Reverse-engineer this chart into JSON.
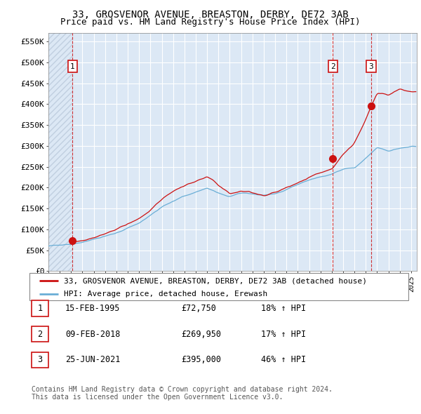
{
  "title": "33, GROSVENOR AVENUE, BREASTON, DERBY, DE72 3AB",
  "subtitle": "Price paid vs. HM Land Registry's House Price Index (HPI)",
  "ylabel_ticks": [
    "£0",
    "£50K",
    "£100K",
    "£150K",
    "£200K",
    "£250K",
    "£300K",
    "£350K",
    "£400K",
    "£450K",
    "£500K",
    "£550K"
  ],
  "ytick_values": [
    0,
    50000,
    100000,
    150000,
    200000,
    250000,
    300000,
    350000,
    400000,
    450000,
    500000,
    550000
  ],
  "ylim": [
    0,
    570000
  ],
  "xlim_start": 1993.0,
  "xlim_end": 2025.5,
  "sale_dates": [
    1995.12,
    2018.09,
    2021.48
  ],
  "sale_prices": [
    72750,
    269950,
    395000
  ],
  "sale_labels": [
    "1",
    "2",
    "3"
  ],
  "hpi_color": "#6aaed6",
  "price_color": "#cc1111",
  "dashed_color": "#cc1111",
  "background_color": "#dce8f5",
  "hatch_color": "#c0cfe0",
  "grid_color": "#ffffff",
  "legend_entries": [
    "33, GROSVENOR AVENUE, BREASTON, DERBY, DE72 3AB (detached house)",
    "HPI: Average price, detached house, Erewash"
  ],
  "table_rows": [
    [
      "1",
      "15-FEB-1995",
      "£72,750",
      "18% ↑ HPI"
    ],
    [
      "2",
      "09-FEB-2018",
      "£269,950",
      "17% ↑ HPI"
    ],
    [
      "3",
      "25-JUN-2021",
      "£395,000",
      "46% ↑ HPI"
    ]
  ],
  "footer_text": "Contains HM Land Registry data © Crown copyright and database right 2024.\nThis data is licensed under the Open Government Licence v3.0.",
  "title_fontsize": 10,
  "subtitle_fontsize": 9,
  "tick_fontsize": 8,
  "legend_fontsize": 8,
  "table_fontsize": 8.5,
  "footer_fontsize": 7
}
